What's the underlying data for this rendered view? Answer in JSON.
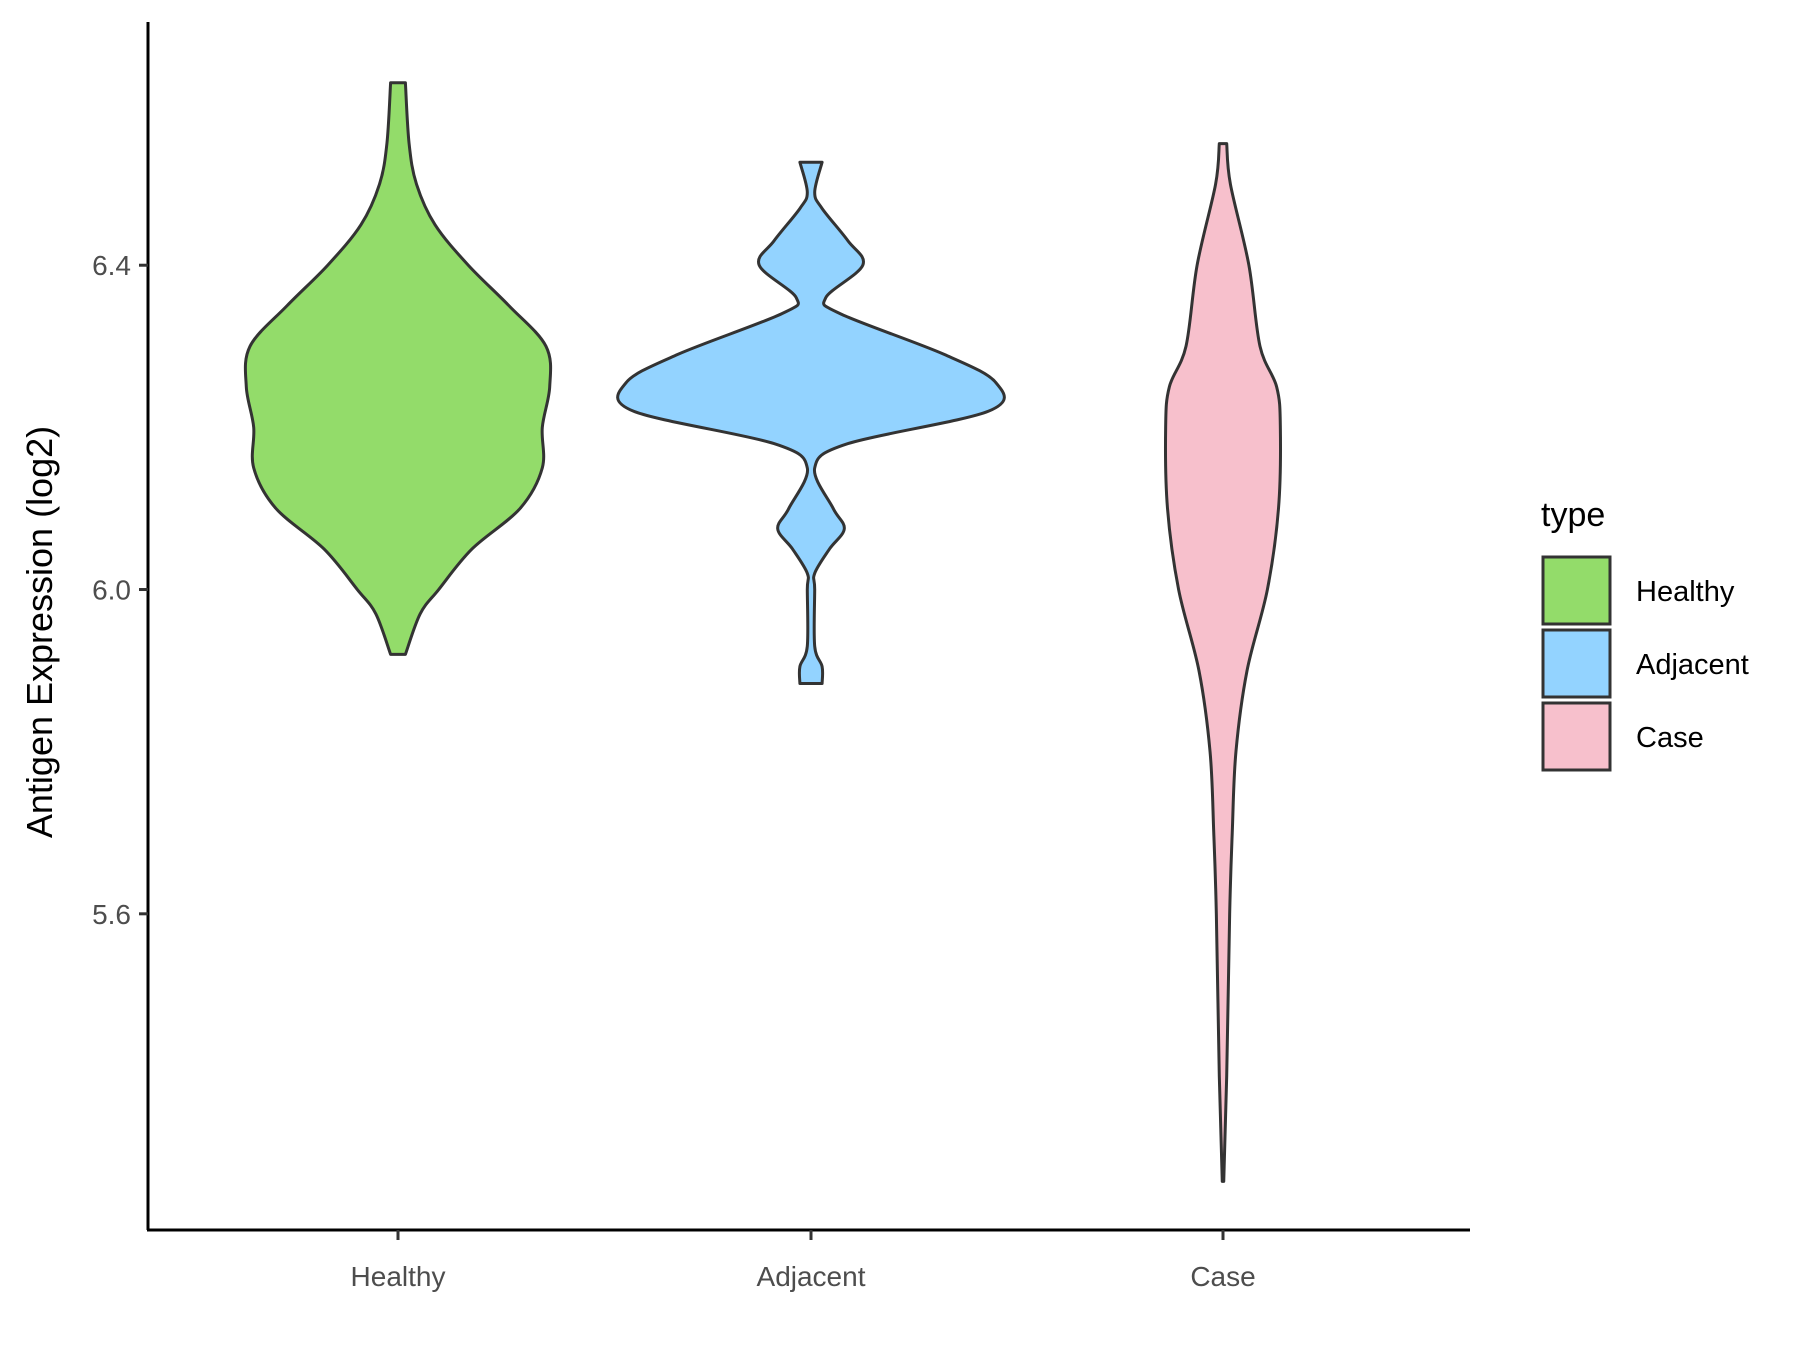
{
  "chart_data": {
    "type": "violin",
    "title": "",
    "xlabel": "",
    "ylabel": "Antigen Expression (log2)",
    "ylim": [
      5.21,
      6.7
    ],
    "yticks": [
      5.6,
      6.0,
      6.4
    ],
    "ytick_labels": [
      "5.6",
      "6.0",
      "6.4"
    ],
    "categories": [
      "Healthy",
      "Adjacent",
      "Case"
    ],
    "grid": false,
    "legend": {
      "title": "type",
      "position": "right",
      "entries": [
        "Healthy",
        "Adjacent",
        "Case"
      ]
    },
    "series": [
      {
        "category": "Healthy",
        "color": "#93DC6A",
        "min": 5.92,
        "max": 6.625,
        "density_profile": [
          [
            5.92,
            0.02
          ],
          [
            5.97,
            0.06
          ],
          [
            6.0,
            0.11
          ],
          [
            6.05,
            0.2
          ],
          [
            6.1,
            0.33
          ],
          [
            6.15,
            0.39
          ],
          [
            6.2,
            0.39
          ],
          [
            6.25,
            0.41
          ],
          [
            6.3,
            0.4
          ],
          [
            6.35,
            0.3
          ],
          [
            6.4,
            0.19
          ],
          [
            6.45,
            0.1
          ],
          [
            6.5,
            0.05
          ],
          [
            6.55,
            0.03
          ],
          [
            6.625,
            0.02
          ]
        ]
      },
      {
        "category": "Adjacent",
        "color": "#93D3FF",
        "min": 5.884,
        "max": 6.527,
        "density_profile": [
          [
            5.884,
            0.03
          ],
          [
            5.905,
            0.03
          ],
          [
            5.93,
            0.01
          ],
          [
            6.0,
            0.01
          ],
          [
            6.02,
            0.01
          ],
          [
            6.05,
            0.05
          ],
          [
            6.075,
            0.09
          ],
          [
            6.1,
            0.06
          ],
          [
            6.15,
            0.01
          ],
          [
            6.18,
            0.1
          ],
          [
            6.22,
            0.48
          ],
          [
            6.255,
            0.5
          ],
          [
            6.29,
            0.36
          ],
          [
            6.34,
            0.08
          ],
          [
            6.36,
            0.04
          ],
          [
            6.4,
            0.14
          ],
          [
            6.43,
            0.1
          ],
          [
            6.47,
            0.03
          ],
          [
            6.49,
            0.01
          ],
          [
            6.527,
            0.03
          ]
        ]
      },
      {
        "category": "Case",
        "color": "#F7C0CC",
        "min": 5.27,
        "max": 6.55,
        "density_profile": [
          [
            5.27,
            0.002
          ],
          [
            5.4,
            0.01
          ],
          [
            5.6,
            0.018
          ],
          [
            5.7,
            0.025
          ],
          [
            5.8,
            0.035
          ],
          [
            5.9,
            0.065
          ],
          [
            6.0,
            0.12
          ],
          [
            6.1,
            0.15
          ],
          [
            6.2,
            0.155
          ],
          [
            6.25,
            0.145
          ],
          [
            6.3,
            0.1
          ],
          [
            6.4,
            0.07
          ],
          [
            6.5,
            0.02
          ],
          [
            6.55,
            0.01
          ]
        ]
      }
    ]
  }
}
